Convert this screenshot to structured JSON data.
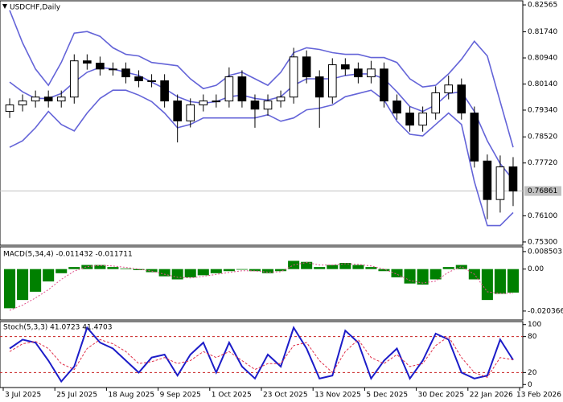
{
  "chart_data": [
    {
      "type": "candlestick",
      "title": "USDCHF,Daily",
      "open": [
        0.793,
        0.795,
        0.7962,
        0.7974,
        0.7962,
        0.7974,
        0.8085,
        0.8078,
        0.806,
        0.806,
        0.8036,
        0.8024,
        0.8024,
        0.7962,
        0.7901,
        0.795,
        0.7962,
        0.7962,
        0.8036,
        0.7962,
        0.7937,
        0.7962,
        0.7974,
        0.8097,
        0.8036,
        0.7974,
        0.8073,
        0.806,
        0.8036,
        0.806,
        0.7962,
        0.7925,
        0.7888,
        0.7925,
        0.7987,
        0.8011,
        0.7925,
        0.7778,
        0.766,
        0.776
      ],
      "high": [
        0.797,
        0.7982,
        0.7994,
        0.7994,
        0.7994,
        0.8105,
        0.8105,
        0.8098,
        0.808,
        0.808,
        0.8056,
        0.8044,
        0.8044,
        0.7982,
        0.797,
        0.7982,
        0.7982,
        0.8065,
        0.8056,
        0.7982,
        0.7982,
        0.7994,
        0.8125,
        0.8117,
        0.8056,
        0.8093,
        0.8093,
        0.808,
        0.8085,
        0.808,
        0.7982,
        0.7945,
        0.7945,
        0.8007,
        0.804,
        0.8031,
        0.7945,
        0.7798,
        0.7795,
        0.779
      ],
      "low": [
        0.791,
        0.793,
        0.7942,
        0.7942,
        0.7942,
        0.7954,
        0.8058,
        0.804,
        0.804,
        0.8016,
        0.8004,
        0.8004,
        0.7942,
        0.7835,
        0.7881,
        0.793,
        0.7942,
        0.7942,
        0.7942,
        0.788,
        0.7917,
        0.7942,
        0.7954,
        0.8016,
        0.788,
        0.7954,
        0.804,
        0.8016,
        0.8016,
        0.7942,
        0.7905,
        0.7868,
        0.7868,
        0.7905,
        0.7967,
        0.7905,
        0.7758,
        0.76,
        0.762,
        0.764
      ],
      "close": [
        0.795,
        0.7962,
        0.7974,
        0.7962,
        0.7974,
        0.8085,
        0.8078,
        0.806,
        0.806,
        0.8036,
        0.8024,
        0.8024,
        0.7962,
        0.7901,
        0.795,
        0.7962,
        0.7962,
        0.8036,
        0.7962,
        0.7937,
        0.7962,
        0.7974,
        0.8097,
        0.8036,
        0.7974,
        0.8073,
        0.806,
        0.8036,
        0.806,
        0.7962,
        0.7925,
        0.7888,
        0.7925,
        0.7987,
        0.8011,
        0.7925,
        0.7778,
        0.766,
        0.776,
        0.7686
      ],
      "bands": {
        "color": "#6464d8",
        "upper": [
          0.824,
          0.814,
          0.806,
          0.801,
          0.808,
          0.817,
          0.8175,
          0.816,
          0.8125,
          0.8105,
          0.81,
          0.808,
          0.8075,
          0.807,
          0.803,
          0.8,
          0.801,
          0.804,
          0.805,
          0.803,
          0.801,
          0.805,
          0.811,
          0.8125,
          0.812,
          0.811,
          0.8105,
          0.8105,
          0.8095,
          0.8095,
          0.808,
          0.803,
          0.8005,
          0.801,
          0.8045,
          0.809,
          0.8145,
          0.81,
          0.796,
          0.782
        ],
        "middle": [
          0.802,
          0.799,
          0.797,
          0.797,
          0.7985,
          0.802,
          0.805,
          0.8065,
          0.806,
          0.805,
          0.804,
          0.802,
          0.8,
          0.7975,
          0.796,
          0.7955,
          0.796,
          0.7975,
          0.798,
          0.797,
          0.7965,
          0.7975,
          0.801,
          0.803,
          0.803,
          0.803,
          0.804,
          0.8045,
          0.8045,
          0.803,
          0.799,
          0.7945,
          0.793,
          0.795,
          0.7985,
          0.799,
          0.793,
          0.784,
          0.777,
          0.772
        ],
        "lower": [
          0.782,
          0.784,
          0.788,
          0.793,
          0.789,
          0.787,
          0.7925,
          0.797,
          0.7995,
          0.7995,
          0.798,
          0.796,
          0.7925,
          0.788,
          0.789,
          0.791,
          0.791,
          0.791,
          0.791,
          0.791,
          0.792,
          0.79,
          0.791,
          0.7935,
          0.794,
          0.795,
          0.7975,
          0.7985,
          0.7995,
          0.7965,
          0.79,
          0.786,
          0.7855,
          0.789,
          0.7925,
          0.789,
          0.7715,
          0.758,
          0.758,
          0.762
        ]
      },
      "last_price": 0.76861,
      "ylim": [
        0.752,
        0.8269
      ],
      "yticks": [
        0.82565,
        {
          "value": 0.8174,
          "label": "0.81740"
        },
        {
          "value": 0.8094,
          "label": "0.80940"
        },
        {
          "value": 0.8014,
          "label": "0.80140"
        },
        {
          "value": 0.7934,
          "label": "0.79340"
        },
        {
          "value": 0.7852,
          "label": "0.78520"
        },
        {
          "value": 0.7772,
          "label": "0.77720"
        },
        {
          "value": 0.761,
          "label": "0.76100"
        },
        {
          "value": 0.753,
          "label": "0.75300"
        }
      ],
      "xlim": [
        0,
        40
      ],
      "xticks": [
        {
          "value": 0,
          "label": "3 Jul 2025"
        },
        {
          "value": 4,
          "label": "25 Jul 2025"
        },
        {
          "value": 8,
          "label": "18 Aug 2025"
        },
        {
          "value": 12,
          "label": "9 Sep 2025"
        },
        {
          "value": 16,
          "label": "1 Oct 2025"
        },
        {
          "value": 20,
          "label": "23 Oct 2025"
        },
        {
          "value": 24,
          "label": "13 Nov 2025"
        },
        {
          "value": 28,
          "label": "5 Dec 2025"
        },
        {
          "value": 32,
          "label": "30 Dec 2025"
        },
        {
          "value": 36,
          "label": "22 Jan 2026"
        },
        {
          "value": 40,
          "label": "13 Feb 2026"
        }
      ]
    },
    {
      "type": "macd",
      "title": "MACD(5,34,4) -0.011432 -0.011711",
      "color": "#008000",
      "signal_color": "#e0508a",
      "values": [
        -0.019,
        -0.015,
        -0.011,
        -0.006,
        -0.002,
        0.001,
        0.002,
        0.002,
        0.001,
        0.0003,
        -0.0005,
        -0.0015,
        -0.0035,
        -0.005,
        -0.004,
        -0.003,
        -0.002,
        -0.001,
        -0.0003,
        -0.001,
        -0.002,
        -0.001,
        0.004,
        0.0035,
        0.001,
        0.002,
        0.003,
        0.002,
        0.001,
        -0.001,
        -0.004,
        -0.007,
        -0.0075,
        -0.005,
        0.001,
        0.002,
        -0.005,
        -0.015,
        -0.012,
        -0.0114
      ],
      "signal": [
        -0.02,
        -0.0175,
        -0.014,
        -0.01,
        -0.005,
        -0.001,
        0.0012,
        0.0018,
        0.0015,
        0.0008,
        0.0,
        -0.001,
        -0.0025,
        -0.004,
        -0.0043,
        -0.0035,
        -0.0026,
        -0.0016,
        -0.0008,
        -0.0009,
        -0.0015,
        -0.0013,
        0.002,
        0.0032,
        0.002,
        0.002,
        0.0026,
        0.0023,
        0.0015,
        0.0,
        -0.0025,
        -0.0055,
        -0.0068,
        -0.0058,
        -0.0015,
        0.0012,
        -0.0025,
        -0.011,
        -0.0118,
        -0.0117
      ],
      "ylim": [
        -0.0247,
        0.0108
      ],
      "yticks": [
        0.008503,
        {
          "value": 0,
          "label": "0.00"
        },
        -0.020366
      ]
    },
    {
      "type": "stoch",
      "title": "Stoch(5,3,3) 41.0723 41.4703",
      "series": [
        {
          "color": "#1c1cc8",
          "values": [
            60,
            75,
            70,
            40,
            5,
            30,
            95,
            70,
            60,
            40,
            20,
            45,
            50,
            15,
            50,
            70,
            20,
            70,
            30,
            10,
            50,
            30,
            95,
            60,
            10,
            15,
            90,
            70,
            10,
            40,
            60,
            10,
            40,
            85,
            75,
            20,
            10,
            15,
            75,
            41.07
          ]
        },
        {
          "color": "#e0304a",
          "values": [
            55,
            68,
            72,
            60,
            35,
            25,
            60,
            75,
            68,
            55,
            35,
            38,
            45,
            35,
            40,
            55,
            45,
            55,
            40,
            25,
            35,
            35,
            65,
            70,
            40,
            20,
            55,
            75,
            45,
            35,
            50,
            30,
            35,
            65,
            80,
            45,
            20,
            12,
            45,
            41.47
          ]
        }
      ],
      "levels": [
        80,
        20
      ],
      "level_color": "#c81e1e",
      "ylim": [
        -5,
        105
      ],
      "yticks": [
        100,
        80,
        20,
        0
      ]
    }
  ]
}
